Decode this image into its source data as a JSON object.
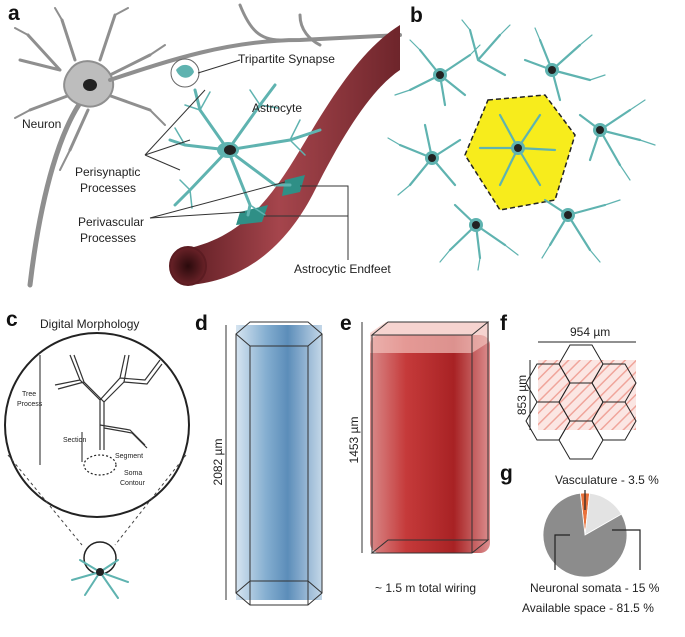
{
  "panels": {
    "a": {
      "label": "a",
      "texts": {
        "neuron": "Neuron",
        "tripartite_synapse": "Tripartite Synapse",
        "astrocyte": "Astrocyte",
        "perisynaptic_1": "Perisynaptic",
        "perisynaptic_2": "Processes",
        "perivascular_1": "Perivascular",
        "perivascular_2": "Processes",
        "endfeet": "Astrocytic Endfeet"
      }
    },
    "b": {
      "label": "b"
    },
    "c": {
      "label": "c",
      "title": "Digital Morphology",
      "texts": {
        "tree_1": "Tree",
        "tree_2": "Process",
        "section": "Section",
        "segment": "Segment",
        "soma_1": "Soma",
        "soma_2": "Contour"
      }
    },
    "d": {
      "label": "d",
      "height": "2082 µm"
    },
    "e": {
      "label": "e",
      "height": "1453 µm",
      "caption": "~ 1.5 m total wiring"
    },
    "f": {
      "label": "f",
      "width": "954 µm",
      "height": "853 µm"
    },
    "g": {
      "label": "g"
    }
  },
  "colors": {
    "astrocyte": "#5fb3b0",
    "territory": "#f7ec1c",
    "vessel": "#8e2f36",
    "endfeet": "#2f8f86",
    "neuron": "#8f8f8f",
    "astro_volume_blue": "#6fa0c8",
    "vascular_volume_red": "#c53a3a"
  },
  "chart_data": {
    "type": "pie",
    "categories": [
      "Vasculature",
      "Neuronal somata",
      "Available space"
    ],
    "values": [
      3.5,
      15,
      81.5
    ],
    "labels": [
      "Vasculature - 3.5 %",
      "Neuronal somata - 15 %",
      "Available space - 81.5 %"
    ],
    "colors": [
      "#e8723c",
      "#e3e3e3",
      "#8c8c8c"
    ]
  }
}
